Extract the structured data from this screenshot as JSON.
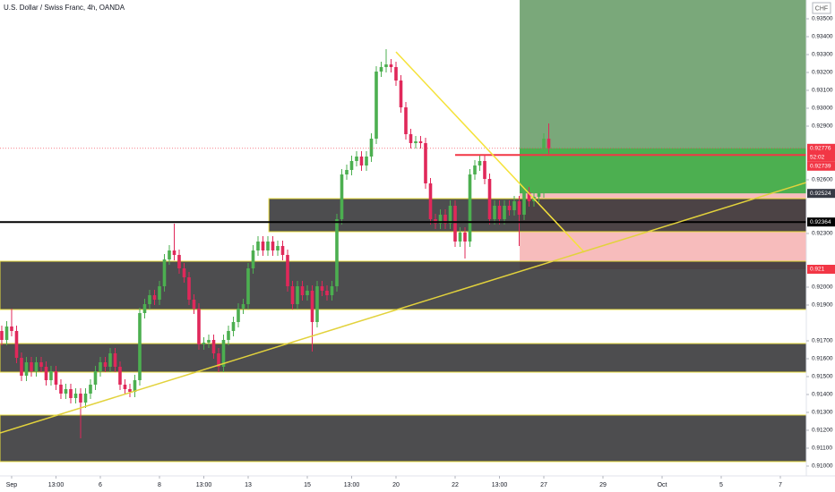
{
  "chart_data": {
    "type": "candlestick",
    "title": "U.S. Dollar / Swiss Franc, 4h, OANDA",
    "currency": "CHF",
    "countdown": "52:02",
    "xlim": [
      -0.36,
      163.27
    ],
    "ylim": [
      0.90945,
      0.93605
    ],
    "colors": {
      "up": "#4caf50",
      "down": "#e0285a"
    },
    "open": [
      0.91755,
      0.91705,
      0.9178,
      0.91755,
      0.91605,
      0.91505,
      0.9158,
      0.9153,
      0.9158,
      0.91555,
      0.9148,
      0.9153,
      0.91455,
      0.91405,
      0.9143,
      0.9138,
      0.91405,
      0.91355,
      0.91405,
      0.91455,
      0.9153,
      0.9158,
      0.91555,
      0.9163,
      0.91555,
      0.91455,
      0.9143,
      0.91415,
      0.9148,
      0.91855,
      0.91905,
      0.91955,
      0.9193,
      0.92005,
      0.92155,
      0.92205,
      0.9218,
      0.92105,
      0.92055,
      0.9193,
      0.9188,
      0.9168,
      0.9169,
      0.91705,
      0.9163,
      0.91555,
      0.91705,
      0.91755,
      0.91805,
      0.9188,
      0.91905,
      0.92105,
      0.92205,
      0.92255,
      0.92205,
      0.92255,
      0.92205,
      0.9223,
      0.9218,
      0.92005,
      0.91905,
      0.92005,
      0.91955,
      0.9198,
      0.91805,
      0.92005,
      0.9198,
      0.91955,
      0.92005,
      0.9238,
      0.9263,
      0.92655,
      0.92705,
      0.9273,
      0.9268,
      0.9273,
      0.9283,
      0.93205,
      0.9323,
      0.93245,
      0.9323,
      0.93155,
      0.93005,
      0.92855,
      0.92805,
      0.92815,
      0.92805,
      0.9258,
      0.9238,
      0.92355,
      0.92405,
      0.92355,
      0.92455,
      0.92255,
      0.92305,
      0.92255,
      0.9263,
      0.9268,
      0.92705,
      0.92605,
      0.9238,
      0.92455,
      0.9238,
      0.92455,
      0.9243,
      0.9248,
      0.92405,
      0.9253,
      0.9248,
      0.92505,
      0.9253,
      0.9283
    ],
    "high": [
      0.91785,
      0.9181,
      0.9188,
      0.91785,
      0.91635,
      0.9161,
      0.9161,
      0.9161,
      0.9161,
      0.91585,
      0.9156,
      0.9156,
      0.91485,
      0.9146,
      0.9146,
      0.91435,
      0.91435,
      0.91435,
      0.91485,
      0.9156,
      0.9161,
      0.9161,
      0.9166,
      0.9166,
      0.91585,
      0.91485,
      0.9146,
      0.9151,
      0.91885,
      0.91935,
      0.91985,
      0.91985,
      0.92035,
      0.92185,
      0.92235,
      0.92355,
      0.9221,
      0.92135,
      0.92085,
      0.9196,
      0.9191,
      0.9172,
      0.91735,
      0.91735,
      0.9166,
      0.91735,
      0.91785,
      0.91835,
      0.9191,
      0.91935,
      0.92135,
      0.92235,
      0.92285,
      0.92285,
      0.92285,
      0.92285,
      0.9226,
      0.9226,
      0.9221,
      0.92035,
      0.92035,
      0.92035,
      0.9201,
      0.9201,
      0.92035,
      0.92035,
      0.9201,
      0.92035,
      0.9241,
      0.9266,
      0.92685,
      0.92735,
      0.9276,
      0.9276,
      0.9276,
      0.9286,
      0.93235,
      0.9326,
      0.9333,
      0.93275,
      0.9326,
      0.93185,
      0.93035,
      0.92885,
      0.92845,
      0.92845,
      0.92835,
      0.9261,
      0.9241,
      0.92435,
      0.92435,
      0.92485,
      0.92485,
      0.92335,
      0.92335,
      0.9266,
      0.9271,
      0.92735,
      0.92735,
      0.92635,
      0.92485,
      0.92485,
      0.92485,
      0.92485,
      0.9251,
      0.9251,
      0.9256,
      0.9256,
      0.92535,
      0.9256,
      0.9286,
      0.92915
    ],
    "low": [
      0.91675,
      0.91675,
      0.91725,
      0.91575,
      0.91475,
      0.91475,
      0.915,
      0.915,
      0.91525,
      0.9145,
      0.9145,
      0.91425,
      0.91375,
      0.91375,
      0.9135,
      0.9135,
      0.91155,
      0.91325,
      0.91375,
      0.91425,
      0.915,
      0.91525,
      0.91525,
      0.91525,
      0.91425,
      0.914,
      0.91385,
      0.91385,
      0.9145,
      0.91825,
      0.91875,
      0.919,
      0.919,
      0.91975,
      0.92125,
      0.9215,
      0.92075,
      0.92025,
      0.919,
      0.9185,
      0.9165,
      0.9165,
      0.9166,
      0.916,
      0.91525,
      0.91525,
      0.91675,
      0.91725,
      0.91775,
      0.9185,
      0.91875,
      0.92075,
      0.92175,
      0.92175,
      0.92175,
      0.92175,
      0.92175,
      0.9215,
      0.91975,
      0.91875,
      0.91875,
      0.91925,
      0.91925,
      0.9164,
      0.91775,
      0.9195,
      0.91925,
      0.91925,
      0.91975,
      0.9235,
      0.926,
      0.92625,
      0.92675,
      0.9265,
      0.9265,
      0.927,
      0.928,
      0.93175,
      0.932,
      0.932,
      0.93125,
      0.92975,
      0.92825,
      0.92775,
      0.92775,
      0.92775,
      0.9255,
      0.9235,
      0.92325,
      0.92325,
      0.92325,
      0.92325,
      0.92225,
      0.92225,
      0.9216,
      0.92225,
      0.926,
      0.9265,
      0.92575,
      0.9235,
      0.9235,
      0.9235,
      0.9235,
      0.924,
      0.924,
      0.9223,
      0.92375,
      0.9245,
      0.9245,
      0.92475,
      0.925,
      0.92746
    ],
    "close": [
      0.91705,
      0.9178,
      0.91755,
      0.91605,
      0.91505,
      0.9158,
      0.9153,
      0.9158,
      0.91555,
      0.9148,
      0.9153,
      0.91455,
      0.91405,
      0.9143,
      0.9138,
      0.91405,
      0.91355,
      0.91405,
      0.91455,
      0.9153,
      0.9158,
      0.91555,
      0.9163,
      0.91555,
      0.91455,
      0.9143,
      0.91415,
      0.9148,
      0.91855,
      0.91905,
      0.91955,
      0.9193,
      0.92005,
      0.92155,
      0.92205,
      0.9218,
      0.92105,
      0.92055,
      0.9193,
      0.9188,
      0.9168,
      0.9169,
      0.91705,
      0.9163,
      0.91555,
      0.91705,
      0.91755,
      0.91805,
      0.9188,
      0.91905,
      0.92105,
      0.92205,
      0.92255,
      0.92205,
      0.92255,
      0.92205,
      0.9223,
      0.9218,
      0.92005,
      0.91905,
      0.92005,
      0.91955,
      0.9198,
      0.91805,
      0.92005,
      0.9198,
      0.91955,
      0.92005,
      0.9238,
      0.9263,
      0.92655,
      0.92705,
      0.9273,
      0.9268,
      0.9273,
      0.9283,
      0.93205,
      0.9323,
      0.93245,
      0.9323,
      0.93155,
      0.93005,
      0.92855,
      0.92805,
      0.92815,
      0.92805,
      0.9258,
      0.9238,
      0.92355,
      0.92405,
      0.92355,
      0.92455,
      0.92255,
      0.92305,
      0.92255,
      0.9263,
      0.9268,
      0.92705,
      0.92605,
      0.9238,
      0.92455,
      0.9238,
      0.92455,
      0.9243,
      0.9248,
      0.92405,
      0.9253,
      0.9248,
      0.92505,
      0.9253,
      0.9283,
      0.92776
    ],
    "yticks": [
      {
        "value": 0.935,
        "label": "0.93500"
      },
      {
        "value": 0.934,
        "label": "0.93400"
      },
      {
        "value": 0.933,
        "label": "0.93300"
      },
      {
        "value": 0.932,
        "label": "0.93200"
      },
      {
        "value": 0.931,
        "label": "0.93100"
      },
      {
        "value": 0.93,
        "label": "0.93000"
      },
      {
        "value": 0.929,
        "label": "0.92900"
      },
      {
        "value": 0.926,
        "label": "0.92600"
      },
      {
        "value": 0.923,
        "label": "0.92300"
      },
      {
        "value": 0.92,
        "label": "0.92000"
      },
      {
        "value": 0.919,
        "label": "0.91900"
      },
      {
        "value": 0.917,
        "label": "0.91700"
      },
      {
        "value": 0.916,
        "label": "0.91600"
      },
      {
        "value": 0.915,
        "label": "0.91500"
      },
      {
        "value": 0.914,
        "label": "0.91400"
      },
      {
        "value": 0.913,
        "label": "0.91300"
      },
      {
        "value": 0.912,
        "label": "0.91200"
      },
      {
        "value": 0.911,
        "label": "0.91100"
      },
      {
        "value": 0.91,
        "label": "0.91000"
      }
    ],
    "xticks": [
      {
        "value": 2,
        "label": "Sep"
      },
      {
        "value": 11,
        "label": "13:00"
      },
      {
        "value": 20,
        "label": "6"
      },
      {
        "value": 32,
        "label": "8"
      },
      {
        "value": 41,
        "label": "13:00"
      },
      {
        "value": 50,
        "label": "13"
      },
      {
        "value": 62,
        "label": "15"
      },
      {
        "value": 71,
        "label": "13:00"
      },
      {
        "value": 80,
        "label": "20"
      },
      {
        "value": 92,
        "label": "22"
      },
      {
        "value": 101,
        "label": "13:00"
      },
      {
        "value": 110,
        "label": "27"
      },
      {
        "value": 122,
        "label": "29"
      },
      {
        "value": 134,
        "label": "Oct"
      },
      {
        "value": 146,
        "label": "5"
      },
      {
        "value": 158,
        "label": "7"
      }
    ],
    "zones": [
      {
        "start": 54.2,
        "top": 0.92495,
        "bottom": 0.9231
      },
      {
        "start": -0.36,
        "top": 0.92145,
        "bottom": 0.91875
      },
      {
        "start": -0.36,
        "top": 0.91685,
        "bottom": 0.91525
      },
      {
        "start": -0.36,
        "top": 0.91285,
        "bottom": 0.91025
      }
    ],
    "position": {
      "start": 105.1,
      "target": 0.93605,
      "entry": 0.92524,
      "stop": 0.921
    },
    "lines": [
      {
        "x": [
          80,
          118.2
        ],
        "y": [
          0.93315,
          0.92195
        ],
        "color": "#f5e23a"
      },
      {
        "x": [
          -0.36,
          163.27
        ],
        "y": [
          0.91185,
          0.92585
        ],
        "color": "#e2d23c"
      }
    ],
    "hlines": [
      {
        "value": 0.92364,
        "start": -0.36,
        "color": "#000000"
      },
      {
        "value": 0.92739,
        "start": 92,
        "color": "#f23645"
      }
    ],
    "price_badges": [
      {
        "value": 0.92776,
        "color": "#f23645"
      },
      {
        "value": 0.92739,
        "color": "#f23645"
      },
      {
        "value": 0.92524,
        "color": "#363a45"
      },
      {
        "value": 0.92364,
        "color": "#000000"
      },
      {
        "value": 0.921,
        "color": "#f23645"
      }
    ]
  }
}
